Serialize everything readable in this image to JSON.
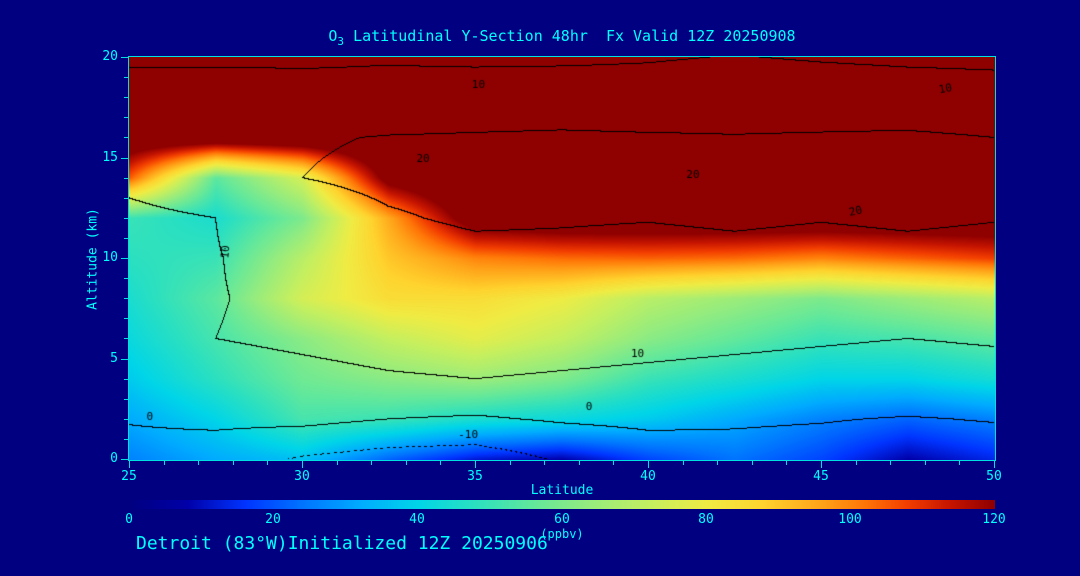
{
  "title": {
    "prefix": "O",
    "subscript": "3",
    "rest": " Latitudinal Y-Section 48hr  Fx Valid 12Z 20250908"
  },
  "axes": {
    "y_label": "Altitude (km)",
    "x_label": "Latitude",
    "y_ticks": [
      0,
      5,
      10,
      15,
      20
    ],
    "x_ticks": [
      25,
      30,
      35,
      40,
      45,
      50
    ]
  },
  "colorbar": {
    "ticks": [
      0,
      20,
      40,
      60,
      80,
      100,
      120
    ],
    "unit_label": "(ppbv)"
  },
  "footer": {
    "text": "Detroit (83°W)Initialized 12Z 20250906"
  },
  "colors": {
    "background": "#000080",
    "foreground": "#00ffff",
    "contour_line": "#000000"
  },
  "chart_data": {
    "type": "heatmap",
    "title": "O3 Latitudinal Y-Section 48hr Fx Valid 12Z 20250908",
    "xlabel": "Latitude",
    "ylabel": "Altitude (km)",
    "unit": "ppbv",
    "xlim": [
      25,
      50
    ],
    "ylim": [
      0,
      20
    ],
    "colorbar_range": [
      0,
      120
    ],
    "x": [
      25,
      27.5,
      30,
      32.5,
      35,
      37.5,
      40,
      42.5,
      45,
      47.5,
      50
    ],
    "y": [
      20,
      18,
      16,
      14,
      12,
      10,
      8,
      6,
      4,
      2,
      0
    ],
    "color_stops": [
      [
        0,
        "#000080"
      ],
      [
        8,
        "#0000A8"
      ],
      [
        16,
        "#0034FF"
      ],
      [
        24,
        "#0074FF"
      ],
      [
        32,
        "#00ABFF"
      ],
      [
        40,
        "#00D5E8"
      ],
      [
        48,
        "#2BE0C0"
      ],
      [
        56,
        "#63E89B"
      ],
      [
        64,
        "#97EC7D"
      ],
      [
        72,
        "#C4EF60"
      ],
      [
        80,
        "#EFEC44"
      ],
      [
        88,
        "#FFD32E"
      ],
      [
        96,
        "#FFA319"
      ],
      [
        102,
        "#FF7607"
      ],
      [
        108,
        "#F23D00"
      ],
      [
        114,
        "#C51400"
      ],
      [
        120,
        "#8F0000"
      ]
    ],
    "values_ppbv": [
      [
        135,
        135,
        135,
        135,
        135,
        135,
        135,
        135,
        135,
        135,
        135
      ],
      [
        135,
        135,
        135,
        135,
        135,
        135,
        135,
        135,
        135,
        135,
        135
      ],
      [
        130,
        130,
        132,
        135,
        135,
        135,
        135,
        135,
        135,
        135,
        135
      ],
      [
        105,
        55,
        75,
        125,
        135,
        135,
        135,
        135,
        135,
        135,
        135
      ],
      [
        50,
        45,
        60,
        95,
        128,
        130,
        130,
        130,
        130,
        130,
        130
      ],
      [
        48,
        50,
        70,
        90,
        100,
        103,
        104,
        103,
        100,
        104,
        108
      ],
      [
        45,
        55,
        75,
        85,
        85,
        80,
        70,
        65,
        60,
        65,
        70
      ],
      [
        42,
        52,
        62,
        72,
        78,
        72,
        62,
        56,
        50,
        52,
        56
      ],
      [
        38,
        48,
        58,
        62,
        65,
        60,
        50,
        45,
        40,
        40,
        44
      ],
      [
        32,
        40,
        52,
        50,
        45,
        42,
        38,
        32,
        26,
        22,
        26
      ],
      [
        26,
        32,
        36,
        22,
        12,
        8,
        18,
        24,
        18,
        8,
        14
      ]
    ],
    "overlay_contours": {
      "levels": [
        -10,
        0,
        10,
        20
      ],
      "dotted_below": 0,
      "values": [
        [
          9,
          9,
          9,
          9.5,
          9,
          9,
          9.5,
          10.2,
          9.5,
          9,
          8.8
        ],
        [
          13,
          13,
          12.5,
          12,
          13,
          13.5,
          13,
          14,
          13.5,
          13,
          12.5
        ],
        [
          17,
          18,
          19,
          20.5,
          21,
          21.5,
          21,
          20.5,
          21,
          21.5,
          20
        ],
        [
          12,
          16,
          20,
          22.5,
          23,
          22.5,
          22,
          22,
          22.5,
          23,
          21.5
        ],
        [
          8,
          10,
          14,
          19,
          21.5,
          21,
          20.5,
          21.5,
          20.5,
          21.5,
          20.5
        ],
        [
          7,
          9.8,
          12,
          15,
          17,
          17,
          16,
          17,
          16,
          17,
          16
        ],
        [
          8,
          9.8,
          11,
          13,
          14,
          13.5,
          13,
          13.5,
          13,
          13.5,
          13
        ],
        [
          8.5,
          10,
          11,
          12,
          12.5,
          12,
          11.5,
          11,
          10.5,
          10,
          10.5
        ],
        [
          6,
          7.5,
          8.5,
          9.5,
          10,
          9.5,
          9,
          8.5,
          8,
          7.5,
          8
        ],
        [
          0.5,
          2,
          2.5,
          0,
          -1,
          1,
          2,
          1,
          0.5,
          -0.5,
          0.5
        ],
        [
          -3,
          -5,
          -11,
          -14,
          -15,
          -9,
          -5,
          -3,
          -4,
          -6,
          -5
        ]
      ]
    },
    "contour_labels": [
      {
        "x": 35.1,
        "y": 18.6,
        "text": "10",
        "rot": 0
      },
      {
        "x": 48.6,
        "y": 18.4,
        "text": "10",
        "rot": -10
      },
      {
        "x": 33.5,
        "y": 14.9,
        "text": "20",
        "rot": 0
      },
      {
        "x": 41.3,
        "y": 14.1,
        "text": "20",
        "rot": 0
      },
      {
        "x": 46.0,
        "y": 12.3,
        "text": "20",
        "rot": -12
      },
      {
        "x": 27.8,
        "y": 10.3,
        "text": "10",
        "rot": -85
      },
      {
        "x": 39.7,
        "y": 5.2,
        "text": "10",
        "rot": 0
      },
      {
        "x": 25.6,
        "y": 2.1,
        "text": "0",
        "rot": 0
      },
      {
        "x": 38.3,
        "y": 2.6,
        "text": "0",
        "rot": 0
      },
      {
        "x": 34.8,
        "y": 1.2,
        "text": "-10",
        "rot": 0
      }
    ]
  }
}
